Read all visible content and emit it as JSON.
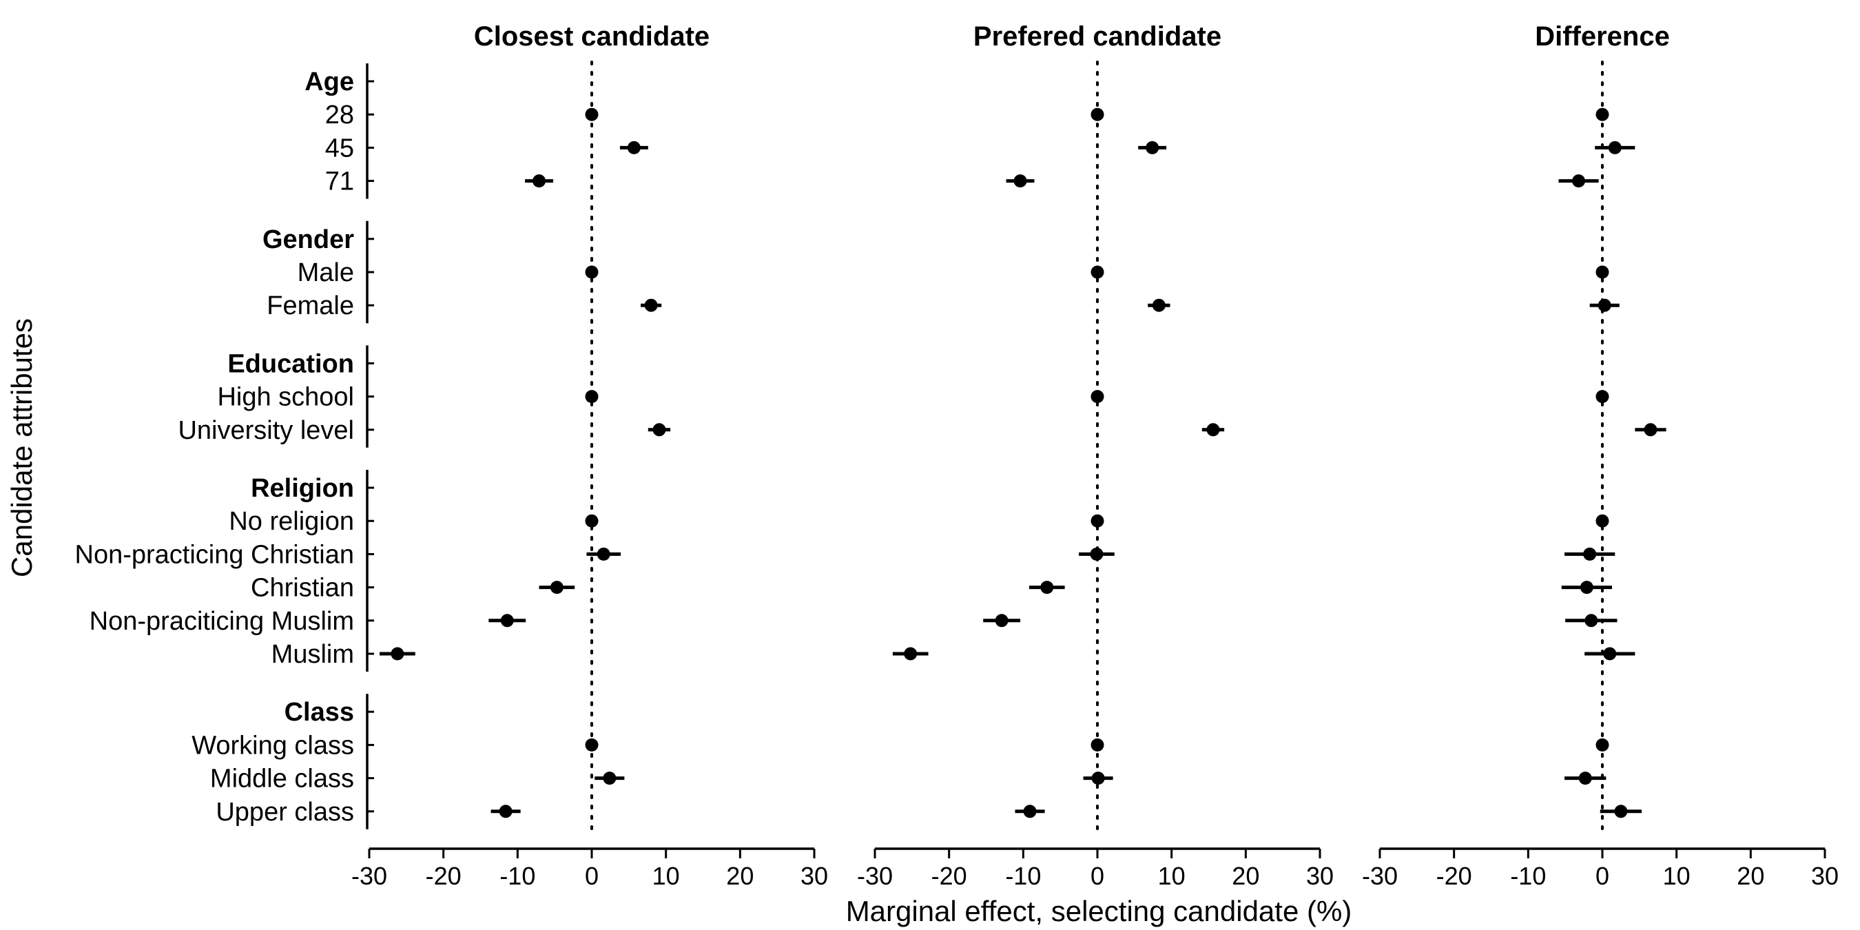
{
  "chart_data": {
    "type": "scatter",
    "subtype": "coefficient-plot",
    "ylabel": "Candidate attributes",
    "xlabel": "Marginal effect, selecting candidate (%)",
    "xlim": [
      -30,
      30
    ],
    "xticks": [
      -30,
      -20,
      -10,
      0,
      10,
      20,
      30
    ],
    "reference_line": 0,
    "grid": false,
    "panels": [
      {
        "title": "Closest candidate"
      },
      {
        "title": "Prefered candidate"
      },
      {
        "title": "Difference"
      }
    ],
    "groups": [
      {
        "name": "Age",
        "levels": [
          {
            "label": "28",
            "estimates": [
              {
                "est": 0,
                "lo": 0,
                "hi": 0
              },
              {
                "est": 0,
                "lo": 0,
                "hi": 0
              },
              {
                "est": 0,
                "lo": 0,
                "hi": 0
              }
            ]
          },
          {
            "label": "45",
            "estimates": [
              {
                "est": 5.7,
                "lo": 3.8,
                "hi": 7.6
              },
              {
                "est": 7.4,
                "lo": 5.5,
                "hi": 9.3
              },
              {
                "est": 1.7,
                "lo": -1.0,
                "hi": 4.4
              }
            ]
          },
          {
            "label": "71",
            "estimates": [
              {
                "est": -7.1,
                "lo": -9.0,
                "hi": -5.2
              },
              {
                "est": -10.4,
                "lo": -12.3,
                "hi": -8.5
              },
              {
                "est": -3.2,
                "lo": -5.9,
                "hi": -0.5
              }
            ]
          }
        ]
      },
      {
        "name": "Gender",
        "levels": [
          {
            "label": "Male",
            "estimates": [
              {
                "est": 0,
                "lo": 0,
                "hi": 0
              },
              {
                "est": 0,
                "lo": 0,
                "hi": 0
              },
              {
                "est": 0,
                "lo": 0,
                "hi": 0
              }
            ]
          },
          {
            "label": "Female",
            "estimates": [
              {
                "est": 8.0,
                "lo": 6.6,
                "hi": 9.4
              },
              {
                "est": 8.3,
                "lo": 6.8,
                "hi": 9.8
              },
              {
                "est": 0.3,
                "lo": -1.7,
                "hi": 2.3
              }
            ]
          }
        ]
      },
      {
        "name": "Education",
        "levels": [
          {
            "label": "High school",
            "estimates": [
              {
                "est": 0,
                "lo": 0,
                "hi": 0
              },
              {
                "est": 0,
                "lo": 0,
                "hi": 0
              },
              {
                "est": 0,
                "lo": 0,
                "hi": 0
              }
            ]
          },
          {
            "label": "University level",
            "estimates": [
              {
                "est": 9.1,
                "lo": 7.6,
                "hi": 10.6
              },
              {
                "est": 15.6,
                "lo": 14.1,
                "hi": 17.1
              },
              {
                "est": 6.5,
                "lo": 4.4,
                "hi": 8.6
              }
            ]
          }
        ]
      },
      {
        "name": "Religion",
        "levels": [
          {
            "label": "No religion",
            "estimates": [
              {
                "est": 0,
                "lo": 0,
                "hi": 0
              },
              {
                "est": 0,
                "lo": 0,
                "hi": 0
              },
              {
                "est": 0,
                "lo": 0,
                "hi": 0
              }
            ]
          },
          {
            "label": "Non-practicing Christian",
            "estimates": [
              {
                "est": 1.6,
                "lo": -0.7,
                "hi": 3.9
              },
              {
                "est": -0.1,
                "lo": -2.5,
                "hi": 2.3
              },
              {
                "est": -1.7,
                "lo": -5.1,
                "hi": 1.7
              }
            ]
          },
          {
            "label": "Christian",
            "estimates": [
              {
                "est": -4.7,
                "lo": -7.1,
                "hi": -2.3
              },
              {
                "est": -6.8,
                "lo": -9.2,
                "hi": -4.4
              },
              {
                "est": -2.1,
                "lo": -5.5,
                "hi": 1.3
              }
            ]
          },
          {
            "label": "Non-praciticing Muslim",
            "estimates": [
              {
                "est": -11.4,
                "lo": -13.9,
                "hi": -8.9
              },
              {
                "est": -12.9,
                "lo": -15.4,
                "hi": -10.4
              },
              {
                "est": -1.5,
                "lo": -5.0,
                "hi": 2.0
              }
            ]
          },
          {
            "label": "Muslim",
            "estimates": [
              {
                "est": -26.2,
                "lo": -28.6,
                "hi": -23.8
              },
              {
                "est": -25.2,
                "lo": -27.6,
                "hi": -22.8
              },
              {
                "est": 1.0,
                "lo": -2.4,
                "hi": 4.4
              }
            ]
          }
        ]
      },
      {
        "name": "Class",
        "levels": [
          {
            "label": "Working class",
            "estimates": [
              {
                "est": 0,
                "lo": 0,
                "hi": 0
              },
              {
                "est": 0,
                "lo": 0,
                "hi": 0
              },
              {
                "est": 0,
                "lo": 0,
                "hi": 0
              }
            ]
          },
          {
            "label": "Middle class",
            "estimates": [
              {
                "est": 2.4,
                "lo": 0.4,
                "hi": 4.4
              },
              {
                "est": 0.1,
                "lo": -1.9,
                "hi": 2.1
              },
              {
                "est": -2.3,
                "lo": -5.1,
                "hi": 0.5
              }
            ]
          },
          {
            "label": "Upper class",
            "estimates": [
              {
                "est": -11.6,
                "lo": -13.6,
                "hi": -9.6
              },
              {
                "est": -9.1,
                "lo": -11.1,
                "hi": -7.1
              },
              {
                "est": 2.5,
                "lo": -0.3,
                "hi": 5.3
              }
            ]
          }
        ]
      }
    ],
    "colors": {
      "marker": "#000000",
      "line": "#000000",
      "background": "#ffffff"
    }
  }
}
